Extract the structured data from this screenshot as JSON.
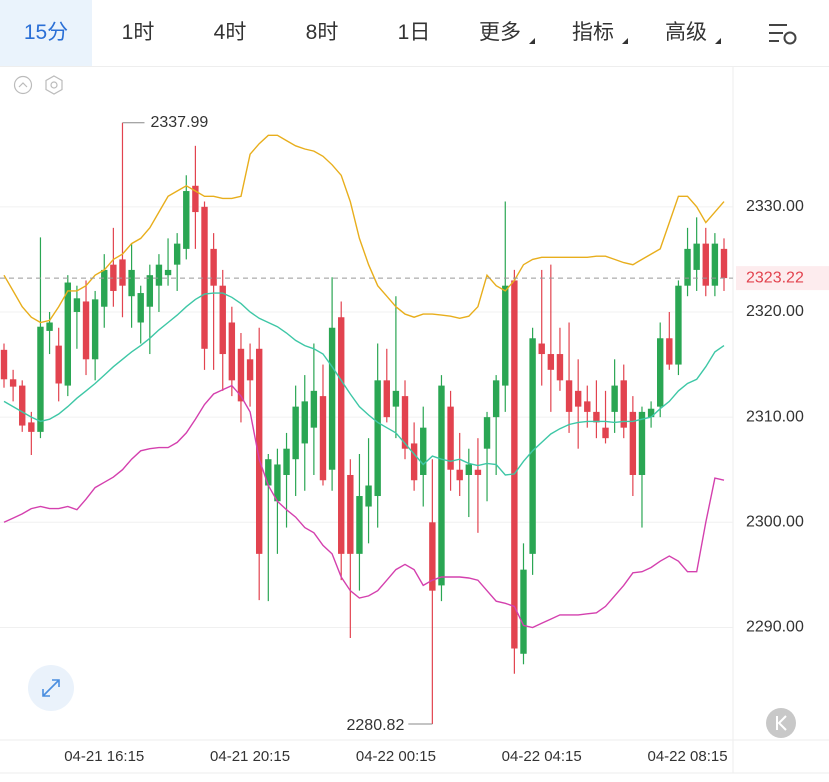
{
  "toolbar": {
    "tabs": [
      "15分",
      "1时",
      "4时",
      "8时",
      "1日"
    ],
    "menus": [
      "更多",
      "指标",
      "高级"
    ]
  },
  "chart_data": {
    "type": "candlestick",
    "categories": [
      null,
      null,
      null,
      null,
      null,
      null,
      null,
      null,
      null,
      null,
      null,
      "04-21 16:15",
      null,
      null,
      null,
      null,
      null,
      null,
      null,
      null,
      null,
      null,
      null,
      null,
      null,
      null,
      null,
      "04-21 20:15",
      null,
      null,
      null,
      null,
      null,
      null,
      null,
      null,
      null,
      null,
      null,
      null,
      null,
      null,
      null,
      "04-22 00:15",
      null,
      null,
      null,
      null,
      null,
      null,
      null,
      null,
      null,
      null,
      null,
      null,
      null,
      null,
      null,
      "04-22 04:15",
      null,
      null,
      null,
      null,
      null,
      null,
      null,
      null,
      null,
      null,
      null,
      null,
      null,
      null,
      null,
      "04-22 08:15",
      null,
      null,
      null,
      null
    ],
    "open": [
      2316.4,
      2313.6,
      2313.0,
      2309.5,
      2308.6,
      2318.2,
      2316.8,
      2313.0,
      2320.0,
      2321.0,
      2315.5,
      2320.5,
      2324.5,
      2325.0,
      2321.5,
      2319.0,
      2320.5,
      2322.5,
      2323.5,
      2324.5,
      2326.0,
      2332.0,
      2330.0,
      2326.0,
      2322.5,
      2319.0,
      2316.5,
      2315.5,
      2316.5,
      2303.5,
      2302.0,
      2304.5,
      2306.0,
      2307.5,
      2309.0,
      2312.0,
      2305.0,
      2319.5,
      2304.5,
      2297.0,
      2301.5,
      2302.5,
      2313.5,
      2311.0,
      2312.0,
      2307.5,
      2304.5,
      2300.0,
      2294.0,
      2311.0,
      2305.0,
      2304.5,
      2305.0,
      2307.0,
      2310.0,
      2313.0,
      2323.0,
      2287.5,
      2297.0,
      2317.0,
      2316.0,
      2316.0,
      2313.5,
      2312.5,
      2311.5,
      2310.5,
      2309.0,
      2310.5,
      2313.5,
      2310.5,
      2304.5,
      2310.0,
      2311.0,
      2317.5,
      2315.0,
      2322.5,
      2324.0,
      2326.5,
      2322.5,
      2326.0
    ],
    "high": [
      2317.0,
      2314.5,
      2313.5,
      2310.5,
      2327.1,
      2320.0,
      2318.5,
      2323.5,
      2322.5,
      2323.0,
      2322.0,
      2325.5,
      2328.0,
      2337.99,
      2326.5,
      2322.5,
      2324.5,
      2325.5,
      2327.0,
      2327.5,
      2333.0,
      2335.8,
      2330.5,
      2327.5,
      2324.0,
      2320.5,
      2318.0,
      2317.0,
      2318.5,
      2306.5,
      2307.0,
      2308.5,
      2313.0,
      2314.0,
      2317.0,
      2315.0,
      2323.3,
      2321.0,
      2306.0,
      2306.5,
      2308.0,
      2317.0,
      2316.5,
      2321.5,
      2313.5,
      2309.5,
      2311.0,
      2306.0,
      2314.0,
      2312.5,
      2308.5,
      2307.0,
      2308.0,
      2310.5,
      2314.0,
      2330.5,
      2324.0,
      2298.0,
      2318.5,
      2324.0,
      2324.5,
      2318.5,
      2319.0,
      2315.5,
      2313.0,
      2313.5,
      2312.5,
      2315.5,
      2315.0,
      2312.0,
      2311.0,
      2311.5,
      2319.0,
      2320.0,
      2323.0,
      2328.0,
      2329.0,
      2328.0,
      2327.5,
      2327.0
    ],
    "low": [
      2312.8,
      2311.5,
      2308.6,
      2306.4,
      2308.0,
      2316.0,
      2311.5,
      2312.0,
      2316.5,
      2314.0,
      2313.5,
      2318.5,
      2320.5,
      2319.5,
      2318.5,
      2317.0,
      2316.0,
      2320.0,
      2322.5,
      2322.0,
      2325.0,
      2326.0,
      2314.5,
      2314.5,
      2312.5,
      2312.0,
      2309.5,
      2311.0,
      2292.6,
      2292.5,
      2297.0,
      2299.5,
      2302.5,
      2303.0,
      2304.5,
      2303.5,
      2303.0,
      2294.5,
      2289.0,
      2293.5,
      2298.0,
      2299.5,
      2309.5,
      2308.0,
      2306.0,
      2303.0,
      2301.5,
      2280.82,
      2292.5,
      2303.0,
      2302.5,
      2300.5,
      2299.0,
      2302.0,
      2304.5,
      2310.5,
      2285.6,
      2286.5,
      2295.0,
      2313.0,
      2310.5,
      2312.5,
      2308.5,
      2307.0,
      2309.0,
      2308.0,
      2307.5,
      2308.5,
      2308.0,
      2302.5,
      2299.5,
      2309.0,
      2310.0,
      2314.5,
      2314.0,
      2321.5,
      2322.0,
      2321.5,
      2321.5,
      2322.0
    ],
    "close": [
      2313.6,
      2312.9,
      2309.2,
      2308.6,
      2318.6,
      2319.0,
      2313.2,
      2322.8,
      2321.3,
      2315.5,
      2321.2,
      2324.0,
      2322.0,
      2322.5,
      2324.0,
      2321.8,
      2323.5,
      2324.5,
      2324.0,
      2326.5,
      2331.5,
      2329.5,
      2316.5,
      2322.5,
      2316.0,
      2313.5,
      2311.5,
      2313.5,
      2297.0,
      2306.0,
      2305.5,
      2307.0,
      2311.0,
      2311.5,
      2312.5,
      2304.0,
      2318.5,
      2297.0,
      2297.0,
      2302.5,
      2303.5,
      2313.5,
      2310.0,
      2312.5,
      2307.0,
      2304.0,
      2309.0,
      2293.5,
      2313.0,
      2305.0,
      2304.0,
      2305.5,
      2304.5,
      2310.0,
      2313.5,
      2322.5,
      2288.0,
      2295.5,
      2317.5,
      2316.0,
      2314.5,
      2313.5,
      2310.5,
      2311.0,
      2310.5,
      2309.5,
      2308.0,
      2313.0,
      2309.0,
      2304.5,
      2310.5,
      2310.8,
      2317.5,
      2315.0,
      2322.5,
      2326.0,
      2326.5,
      2322.5,
      2326.5,
      2323.22
    ],
    "up_color": "#2aa653",
    "down_color": "#e2434f",
    "bands": [
      {
        "color": "#e8ae1c",
        "values": [
          2323.5,
          2322,
          2320.5,
          2319.5,
          2319,
          2319.2,
          2320.5,
          2322,
          2322,
          2322.5,
          2323.5,
          2324,
          2325,
          2325.5,
          2326.5,
          2327,
          2328,
          2329.5,
          2331,
          2331.5,
          2332,
          2331.5,
          2331,
          2331,
          2330.8,
          2330.8,
          2331,
          2335,
          2336,
          2336.8,
          2336.8,
          2336.3,
          2335.8,
          2335.5,
          2335.3,
          2334.8,
          2334,
          2333,
          2330.5,
          2327,
          2324.5,
          2322.5,
          2321.5,
          2320.5,
          2319.8,
          2319.5,
          2319.8,
          2319.8,
          2319.7,
          2319.6,
          2319.4,
          2319.6,
          2320.5,
          2323.5,
          2322.5,
          2322,
          2323,
          2324.5,
          2325,
          2325.2,
          2325.2,
          2325.2,
          2325.2,
          2325.2,
          2325.2,
          2325.3,
          2325.3,
          2325,
          2324.7,
          2324.5,
          2325,
          2325.5,
          2326,
          2328.5,
          2331,
          2331,
          2330,
          2328.5,
          2329.5,
          2330.5
        ]
      },
      {
        "color": "#3ec7a6",
        "values": [
          2311.5,
          2311,
          2310.5,
          2310,
          2309.6,
          2309.8,
          2310.3,
          2311,
          2311.8,
          2312.5,
          2313.2,
          2314,
          2314.8,
          2315.5,
          2316.2,
          2316.8,
          2317.5,
          2318.3,
          2319,
          2319.7,
          2320.5,
          2321.2,
          2321.7,
          2321.8,
          2321.8,
          2321.4,
          2320.8,
          2320,
          2319.4,
          2319,
          2318.6,
          2318,
          2317.3,
          2316.8,
          2316.5,
          2316,
          2314.8,
          2313.5,
          2312.2,
          2311,
          2310.2,
          2309.5,
          2309,
          2308.5,
          2307.5,
          2306.5,
          2305.5,
          2306.3,
          2306,
          2305.8,
          2306,
          2305.6,
          2305.4,
          2305.6,
          2305.5,
          2304.5,
          2304.6,
          2305.8,
          2306.8,
          2307.6,
          2308.4,
          2308.9,
          2309.3,
          2309.5,
          2309.6,
          2309.6,
          2309.6,
          2309.5,
          2309.6,
          2309.6,
          2309.8,
          2310,
          2310.8,
          2311.5,
          2312.5,
          2313.2,
          2313.6,
          2314.8,
          2316.2,
          2316.8
        ]
      },
      {
        "color": "#d440ae",
        "values": [
          2300,
          2300.4,
          2300.8,
          2301.3,
          2301.5,
          2301.3,
          2301.3,
          2301.5,
          2301.2,
          2302.2,
          2303.3,
          2303.8,
          2304.3,
          2305,
          2306,
          2306.8,
          2307,
          2307.1,
          2307.1,
          2307.6,
          2308.5,
          2309.8,
          2311.2,
          2312.2,
          2312.6,
          2313,
          2312,
          2310.5,
          2306,
          2303.5,
          2302,
          2301.2,
          2300.5,
          2299.5,
          2299,
          2297.8,
          2297,
          2294.8,
          2293.5,
          2292.8,
          2293,
          2293.5,
          2294.5,
          2295.5,
          2296,
          2295.5,
          2294,
          2294.5,
          2294.8,
          2294.8,
          2294.8,
          2294.7,
          2294.5,
          2293.5,
          2292.5,
          2292.3,
          2292,
          2290.2,
          2290,
          2290.4,
          2290.8,
          2291.2,
          2291.2,
          2291.2,
          2291.3,
          2291.4,
          2292,
          2293,
          2294,
          2295.2,
          2295.3,
          2295.7,
          2296.3,
          2296.8,
          2296.3,
          2295.3,
          2295.3,
          2300,
          2304.2,
          2304
        ]
      }
    ],
    "ylim": [
      2279.3,
      2343.2
    ],
    "yticks": [
      {
        "value": 2290,
        "label": "2290.00"
      },
      {
        "value": 2300,
        "label": "2300.00"
      },
      {
        "value": 2310,
        "label": "2310.00"
      },
      {
        "value": 2320,
        "label": "2320.00"
      },
      {
        "value": 2330,
        "label": "2330.00"
      }
    ],
    "grid": true,
    "last_price": 2323.22,
    "high_mark": 2337.99,
    "low_mark": 2280.82
  }
}
